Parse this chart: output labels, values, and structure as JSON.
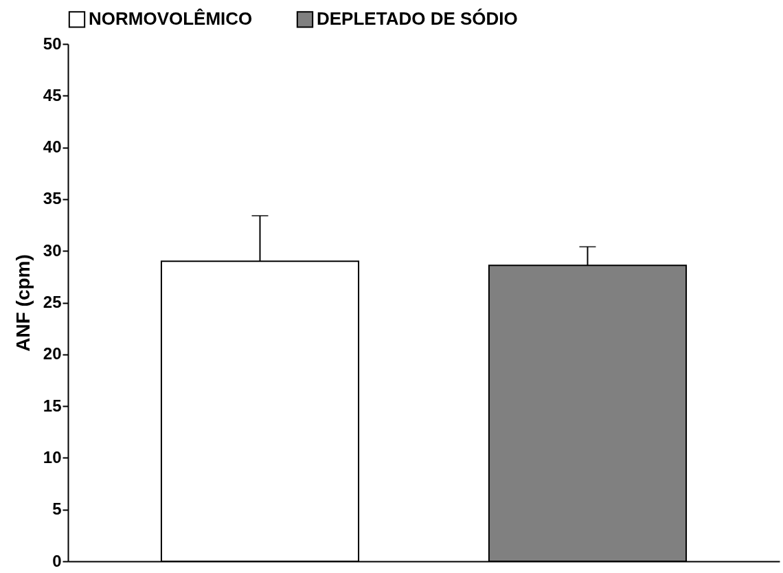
{
  "chart_data": {
    "type": "bar",
    "ylabel": "ANF (cpm)",
    "categories": [
      null
    ],
    "series": [
      {
        "name": "NORMOVOLÊMICO",
        "color": "#ffffff",
        "values": [
          29.0
        ],
        "errors": [
          [
            29.0,
            33.4
          ]
        ]
      },
      {
        "name": "DEPLETADO DE SÓDIO",
        "color": "#808080",
        "values": [
          28.6
        ],
        "errors": [
          [
            28.6,
            30.4
          ]
        ]
      }
    ],
    "ylim": [
      0,
      50
    ],
    "yticks": [
      0,
      5,
      10,
      15,
      20,
      25,
      30,
      35,
      40,
      45,
      50
    ],
    "grid": false,
    "legend": "top",
    "tick_labels": "y"
  }
}
